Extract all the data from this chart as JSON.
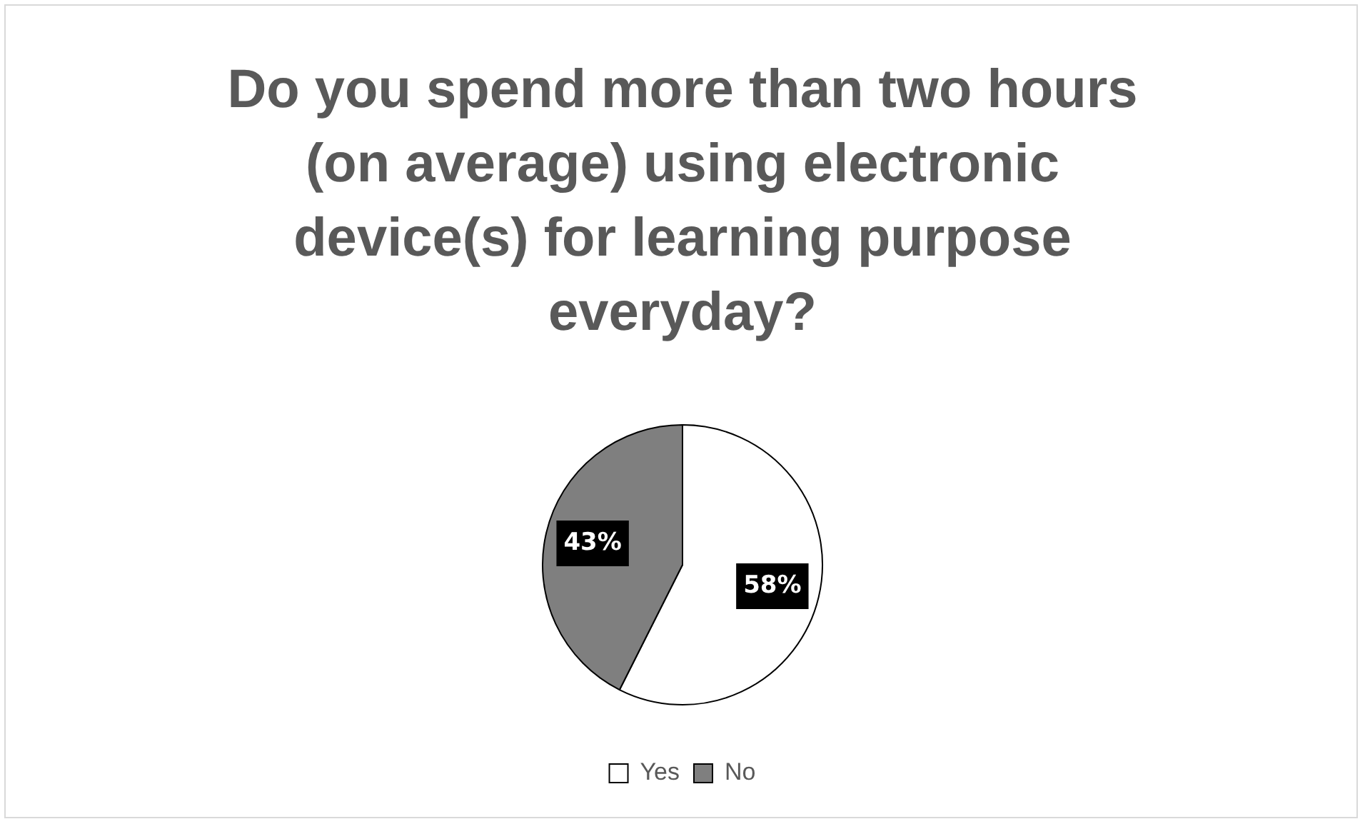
{
  "chart_data": {
    "type": "pie",
    "title": "Do you spend more than two hours (on average) using electronic device(s) for learning purpose everyday?",
    "categories": [
      "Yes",
      "No"
    ],
    "values": [
      58,
      43
    ],
    "colors": [
      "#ffffff",
      "#7f7f7f"
    ],
    "value_labels": [
      "58%",
      "43%"
    ],
    "legend": "bottom"
  }
}
